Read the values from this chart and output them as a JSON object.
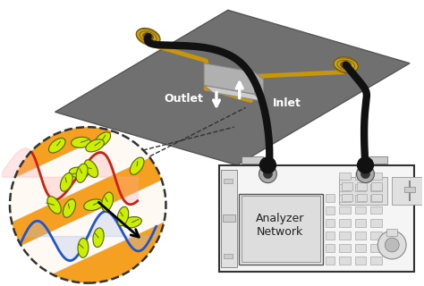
{
  "bg_color": "#ffffff",
  "plate_color": "#707070",
  "plate_edge_color": "#555555",
  "trace_color": "#c8960a",
  "cable_color": "#111111",
  "connector_color": "#c8a020",
  "connector_dark": "#8B6914",
  "wave_blue": "#2255cc",
  "wave_red": "#cc2211",
  "wave_blue_fill": "#aabbee",
  "wave_red_fill": "#ffaaaa",
  "circle_bg": "#f5a020",
  "circle_border": "#333333",
  "bacteria_fill": "#ccee00",
  "bacteria_edge": "#556600",
  "stripe_white": "#ffffff",
  "stripe_gray": "#cccccc",
  "analyzer_bg": "#f5f5f5",
  "analyzer_edge": "#333333",
  "screen_bg": "#e8e8e8",
  "button_bg": "#dddddd",
  "button_edge": "#999999",
  "outlet_label": "Outlet",
  "inlet_label": "Inlet",
  "outlet_color": "#ffffff",
  "inlet_color": "#ffffff",
  "arrow_black": "#111111",
  "dashed_color": "#333333",
  "block_face": "#b0b0b0",
  "block_top": "#cccccc",
  "block_edge": "#888888"
}
